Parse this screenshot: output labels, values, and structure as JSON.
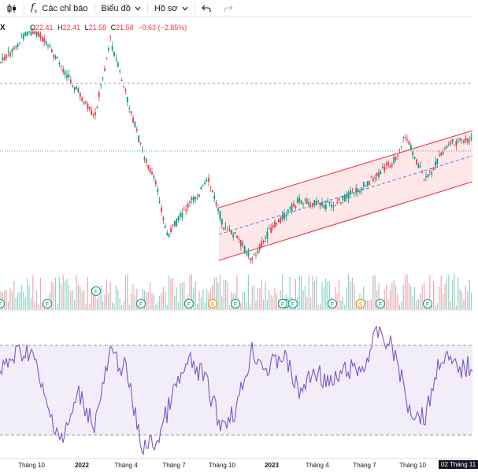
{
  "toolbar": {
    "indicators_label": "Các chỉ báo",
    "chart_label": "Biểu đồ",
    "profile_label": "Hồ sơ"
  },
  "legend": {
    "ticker": "X",
    "o_key": "O",
    "o_val": "22.41",
    "h_key": "H",
    "h_val": "22.41",
    "l_key": "L",
    "l_val": "21.58",
    "c_key": "C",
    "c_val": "21.58",
    "change": "−0.63 (−2.85%)"
  },
  "colors": {
    "up": "#089981",
    "down": "#f23645",
    "rsi": "#7e57c2",
    "channel": "#f23645",
    "grid": "#2962ff"
  },
  "events": [
    {
      "type": "F"
    },
    {
      "type": "F"
    },
    {
      "type": "F"
    },
    {
      "type": "F"
    },
    {
      "type": "F"
    },
    {
      "type": "F"
    },
    {
      "type": "S"
    },
    {
      "type": "F"
    },
    {
      "type": "F"
    },
    {
      "type": "F"
    },
    {
      "type": "F"
    },
    {
      "type": "S"
    },
    {
      "type": "F"
    },
    {
      "type": "F"
    }
  ],
  "xaxis": {
    "labels": [
      "Tháng 10",
      "2022",
      "Tháng 4",
      "Tháng 7",
      "Tháng 10",
      "2023",
      "Tháng 4",
      "Tháng 7",
      "Tháng 10"
    ],
    "current_date": "02 Tháng 11"
  }
}
